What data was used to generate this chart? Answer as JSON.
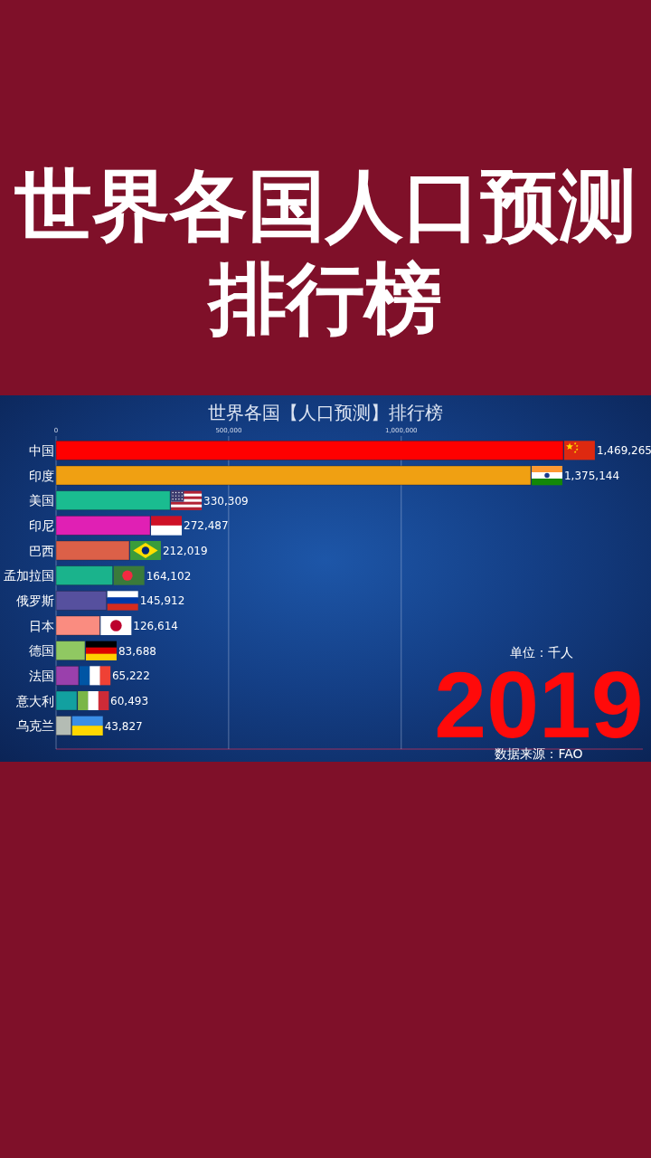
{
  "chart_data": {
    "type": "bar",
    "orientation": "horizontal",
    "title": "世界各国人口预测排行榜",
    "subtitle": "世界各国【人口预测】排行榜",
    "categories": [
      "中国",
      "印度",
      "美国",
      "印尼",
      "巴西",
      "孟加拉国",
      "俄罗斯",
      "日本",
      "德国",
      "法国",
      "意大利",
      "乌克兰"
    ],
    "values": [
      1469265,
      1375144,
      330309,
      272487,
      212019,
      164102,
      145912,
      126614,
      83688,
      65222,
      60493,
      43827
    ],
    "value_labels": [
      "1,469,265",
      "1,375,144",
      "330,309",
      "272,487",
      "212,019",
      "164,102",
      "145,912",
      "126,614",
      "83,688",
      "65,222",
      "60,493",
      "43,827"
    ],
    "colors": [
      "#ff0000",
      "#f0a012",
      "#1abc90",
      "#e020b4",
      "#dc6048",
      "#1ab38c",
      "#56509e",
      "#fa8c80",
      "#90c862",
      "#9a40ac",
      "#12a0a0",
      "#b4bcb4"
    ],
    "xlim": [
      0,
      1700000
    ],
    "xticks": [
      0,
      {
        "value": 500000,
        "label": "500,000"
      },
      {
        "value": 1000000,
        "label": "1,000,000"
      }
    ],
    "grid": "x",
    "annotations": [
      "单位：千人",
      "2019",
      "数据来源：FAO"
    ]
  }
}
